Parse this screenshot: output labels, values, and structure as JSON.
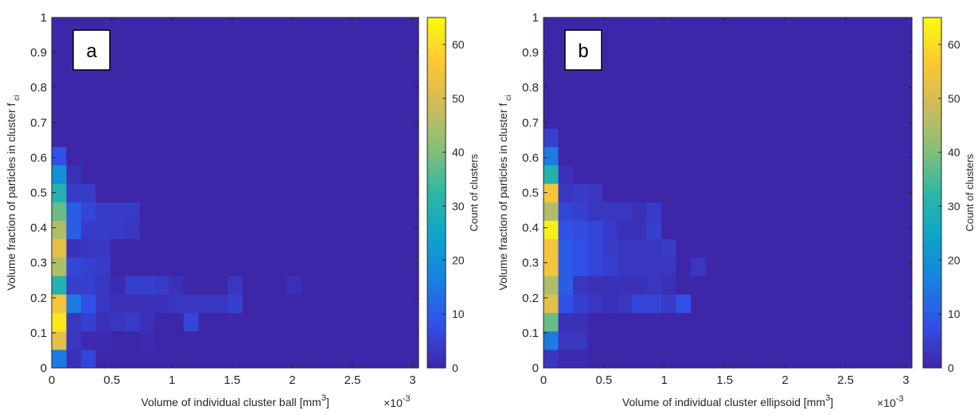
{
  "chart_data": [
    {
      "type": "heatmap",
      "label": "a",
      "xlabel": "Volume of individual cluster ball [mm",
      "xlabel_superscript": "3",
      "xlabel_end": "]",
      "ylabel": "Volume fraction of particles in cluster f",
      "ylabel_subscript": "ci",
      "x_exponent_base": "×10",
      "x_exponent": "-3",
      "xlim": [
        0,
        3.05
      ],
      "xticks": [
        0,
        0.5,
        1,
        1.5,
        2,
        2.5,
        3
      ],
      "ylim": [
        0,
        1
      ],
      "yticks": [
        0,
        0.1,
        0.2,
        0.3,
        0.4,
        0.5,
        0.6,
        0.7,
        0.8,
        0.9,
        1
      ],
      "colormap": "parula",
      "clim": [
        0,
        65
      ],
      "cticks": [
        0,
        10,
        20,
        30,
        40,
        50,
        60
      ],
      "colorbar_label": "Count of clusters",
      "counts": [
        [
          15,
          2,
          6,
          0,
          0,
          0,
          0,
          0,
          0,
          0,
          0,
          0,
          0,
          0,
          0,
          0,
          0,
          0,
          0,
          0,
          0,
          0,
          0,
          0,
          0
        ],
        [
          52,
          3,
          1,
          1,
          0,
          0,
          1,
          0,
          0,
          0,
          0,
          0,
          0,
          0,
          0,
          0,
          0,
          0,
          0,
          0,
          0,
          0,
          0,
          0,
          0
        ],
        [
          62,
          3,
          5,
          2,
          3,
          4,
          2,
          0,
          0,
          6,
          0,
          0,
          0,
          0,
          0,
          0,
          0,
          0,
          0,
          0,
          0,
          0,
          0,
          0,
          0
        ],
        [
          55,
          15,
          8,
          3,
          2,
          2,
          2,
          2,
          3,
          3,
          3,
          3,
          5,
          0,
          0,
          0,
          0,
          0,
          0,
          0,
          0,
          0,
          0,
          0,
          0
        ],
        [
          30,
          5,
          5,
          3,
          1,
          5,
          5,
          4,
          2,
          0,
          0,
          0,
          3,
          0,
          0,
          0,
          2,
          0,
          0,
          0,
          0,
          0,
          0,
          0,
          0
        ],
        [
          45,
          6,
          5,
          4,
          0,
          0,
          0,
          0,
          0,
          0,
          0,
          0,
          0,
          0,
          0,
          0,
          0,
          0,
          0,
          0,
          0,
          0,
          0,
          0,
          0
        ],
        [
          52,
          2,
          3,
          3,
          0,
          0,
          0,
          0,
          0,
          0,
          0,
          0,
          0,
          0,
          0,
          0,
          0,
          0,
          0,
          0,
          0,
          0,
          0,
          0,
          0
        ],
        [
          45,
          10,
          4,
          4,
          4,
          3,
          0,
          0,
          0,
          0,
          0,
          0,
          0,
          0,
          0,
          0,
          0,
          0,
          0,
          0,
          0,
          0,
          0,
          0,
          0
        ],
        [
          38,
          10,
          6,
          4,
          4,
          4,
          0,
          0,
          0,
          0,
          0,
          0,
          0,
          0,
          0,
          0,
          0,
          0,
          0,
          0,
          0,
          0,
          0,
          0,
          0
        ],
        [
          30,
          4,
          4,
          0,
          0,
          0,
          0,
          0,
          0,
          0,
          0,
          0,
          0,
          0,
          0,
          0,
          0,
          0,
          0,
          0,
          0,
          0,
          0,
          0,
          0
        ],
        [
          20,
          2,
          0,
          0,
          0,
          0,
          0,
          0,
          0,
          0,
          0,
          0,
          0,
          0,
          0,
          0,
          0,
          0,
          0,
          0,
          0,
          0,
          0,
          0,
          0
        ],
        [
          8,
          0,
          0,
          0,
          0,
          0,
          0,
          0,
          0,
          0,
          0,
          0,
          0,
          0,
          0,
          0,
          0,
          0,
          0,
          0,
          0,
          0,
          0,
          0,
          0
        ],
        [
          0,
          0,
          0,
          0,
          0,
          0,
          0,
          0,
          0,
          0,
          0,
          0,
          0,
          0,
          0,
          0,
          0,
          0,
          0,
          0,
          0,
          0,
          0,
          0,
          0
        ],
        [
          0,
          0,
          0,
          0,
          0,
          0,
          0,
          0,
          0,
          0,
          0,
          0,
          0,
          0,
          0,
          0,
          0,
          0,
          0,
          0,
          0,
          0,
          0,
          0,
          0
        ],
        [
          0,
          0,
          0,
          0,
          0,
          0,
          0,
          0,
          0,
          0,
          0,
          0,
          0,
          0,
          0,
          0,
          0,
          0,
          0,
          0,
          0,
          0,
          0,
          0,
          0
        ],
        [
          0,
          0,
          0,
          0,
          0,
          0,
          0,
          0,
          0,
          0,
          0,
          0,
          0,
          0,
          0,
          0,
          0,
          0,
          0,
          0,
          0,
          0,
          0,
          0,
          0
        ],
        [
          0,
          0,
          0,
          0,
          0,
          0,
          0,
          0,
          0,
          0,
          0,
          0,
          0,
          0,
          0,
          0,
          0,
          0,
          0,
          0,
          0,
          0,
          0,
          0,
          0
        ],
        [
          0,
          0,
          0,
          0,
          0,
          0,
          0,
          0,
          0,
          0,
          0,
          0,
          0,
          0,
          0,
          0,
          0,
          0,
          0,
          0,
          0,
          0,
          0,
          0,
          0
        ],
        [
          0,
          0,
          0,
          0,
          0,
          0,
          0,
          0,
          0,
          0,
          0,
          0,
          0,
          0,
          0,
          0,
          0,
          0,
          0,
          0,
          0,
          0,
          0,
          0,
          0
        ]
      ]
    },
    {
      "type": "heatmap",
      "label": "b",
      "xlabel": "Volume of individual cluster ellipsoid [mm",
      "xlabel_superscript": "3",
      "xlabel_end": "]",
      "ylabel": "Volume fraction of particles in cluster f",
      "ylabel_subscript": "ci",
      "x_exponent_base": "×10",
      "x_exponent": "-3",
      "xlim": [
        0,
        3.05
      ],
      "xticks": [
        0,
        0.5,
        1,
        1.5,
        2,
        2.5,
        3
      ],
      "ylim": [
        0,
        1
      ],
      "yticks": [
        0,
        0.1,
        0.2,
        0.3,
        0.4,
        0.5,
        0.6,
        0.7,
        0.8,
        0.9,
        1
      ],
      "colormap": "parula",
      "clim": [
        0,
        65
      ],
      "cticks": [
        0,
        10,
        20,
        30,
        40,
        50,
        60
      ],
      "colorbar_label": "Count of clusters",
      "counts": [
        [
          3,
          1,
          1,
          0,
          0,
          0,
          0,
          0,
          0,
          0,
          0,
          0,
          0,
          0,
          0,
          0,
          0,
          0,
          0,
          0,
          0,
          0,
          0,
          0,
          0
        ],
        [
          15,
          3,
          3,
          0,
          0,
          0,
          0,
          0,
          0,
          0,
          0,
          0,
          0,
          0,
          0,
          0,
          0,
          0,
          0,
          0,
          0,
          0,
          0,
          0,
          0
        ],
        [
          38,
          2,
          2,
          0,
          0,
          0,
          0,
          0,
          0,
          0,
          0,
          0,
          0,
          0,
          0,
          0,
          0,
          0,
          0,
          0,
          0,
          0,
          0,
          0,
          0
        ],
        [
          52,
          8,
          5,
          3,
          2,
          3,
          6,
          6,
          4,
          8,
          0,
          0,
          0,
          0,
          0,
          0,
          0,
          0,
          0,
          0,
          0,
          0,
          0,
          0,
          0
        ],
        [
          45,
          10,
          3,
          2,
          2,
          2,
          2,
          3,
          2,
          0,
          0,
          0,
          0,
          0,
          0,
          0,
          0,
          0,
          0,
          0,
          0,
          0,
          0,
          0,
          0
        ],
        [
          55,
          10,
          8,
          6,
          5,
          3,
          3,
          3,
          3,
          0,
          3,
          0,
          0,
          0,
          0,
          0,
          0,
          0,
          0,
          0,
          0,
          0,
          0,
          0,
          0
        ],
        [
          55,
          10,
          8,
          6,
          4,
          3,
          3,
          3,
          4,
          0,
          0,
          0,
          0,
          0,
          0,
          0,
          0,
          0,
          0,
          0,
          0,
          0,
          0,
          0,
          0
        ],
        [
          63,
          8,
          7,
          6,
          4,
          2,
          2,
          5,
          0,
          0,
          0,
          0,
          0,
          0,
          0,
          0,
          0,
          0,
          0,
          0,
          0,
          0,
          0,
          0,
          0
        ],
        [
          45,
          6,
          5,
          3,
          3,
          3,
          2,
          4,
          0,
          0,
          0,
          0,
          0,
          0,
          0,
          0,
          0,
          0,
          0,
          0,
          0,
          0,
          0,
          0,
          0
        ],
        [
          55,
          3,
          4,
          3,
          0,
          0,
          0,
          0,
          0,
          0,
          0,
          0,
          0,
          0,
          0,
          0,
          0,
          0,
          0,
          0,
          0,
          0,
          0,
          0,
          0
        ],
        [
          30,
          2,
          0,
          0,
          0,
          0,
          0,
          0,
          0,
          0,
          0,
          0,
          0,
          0,
          0,
          0,
          0,
          0,
          0,
          0,
          0,
          0,
          0,
          0,
          0
        ],
        [
          15,
          0,
          0,
          0,
          0,
          0,
          0,
          0,
          0,
          0,
          0,
          0,
          0,
          0,
          0,
          0,
          0,
          0,
          0,
          0,
          0,
          0,
          0,
          0,
          0
        ],
        [
          5,
          0,
          0,
          0,
          0,
          0,
          0,
          0,
          0,
          0,
          0,
          0,
          0,
          0,
          0,
          0,
          0,
          0,
          0,
          0,
          0,
          0,
          0,
          0,
          0
        ],
        [
          0,
          0,
          0,
          0,
          0,
          0,
          0,
          0,
          0,
          0,
          0,
          0,
          0,
          0,
          0,
          0,
          0,
          0,
          0,
          0,
          0,
          0,
          0,
          0,
          0
        ],
        [
          0,
          0,
          0,
          0,
          0,
          0,
          0,
          0,
          0,
          0,
          0,
          0,
          0,
          0,
          0,
          0,
          0,
          0,
          0,
          0,
          0,
          0,
          0,
          0,
          0
        ],
        [
          0,
          0,
          0,
          0,
          0,
          0,
          0,
          0,
          0,
          0,
          0,
          0,
          0,
          0,
          0,
          0,
          0,
          0,
          0,
          0,
          0,
          0,
          0,
          0,
          0
        ],
        [
          0,
          0,
          0,
          0,
          0,
          0,
          0,
          0,
          0,
          0,
          0,
          0,
          0,
          0,
          0,
          0,
          0,
          0,
          0,
          0,
          0,
          0,
          0,
          0,
          0
        ],
        [
          0,
          0,
          0,
          0,
          0,
          0,
          0,
          0,
          0,
          0,
          0,
          0,
          0,
          0,
          0,
          0,
          0,
          0,
          0,
          0,
          0,
          0,
          0,
          0,
          0
        ],
        [
          0,
          0,
          0,
          0,
          0,
          0,
          0,
          0,
          0,
          0,
          0,
          0,
          0,
          0,
          0,
          0,
          0,
          0,
          0,
          0,
          0,
          0,
          0,
          0,
          0
        ]
      ]
    }
  ]
}
